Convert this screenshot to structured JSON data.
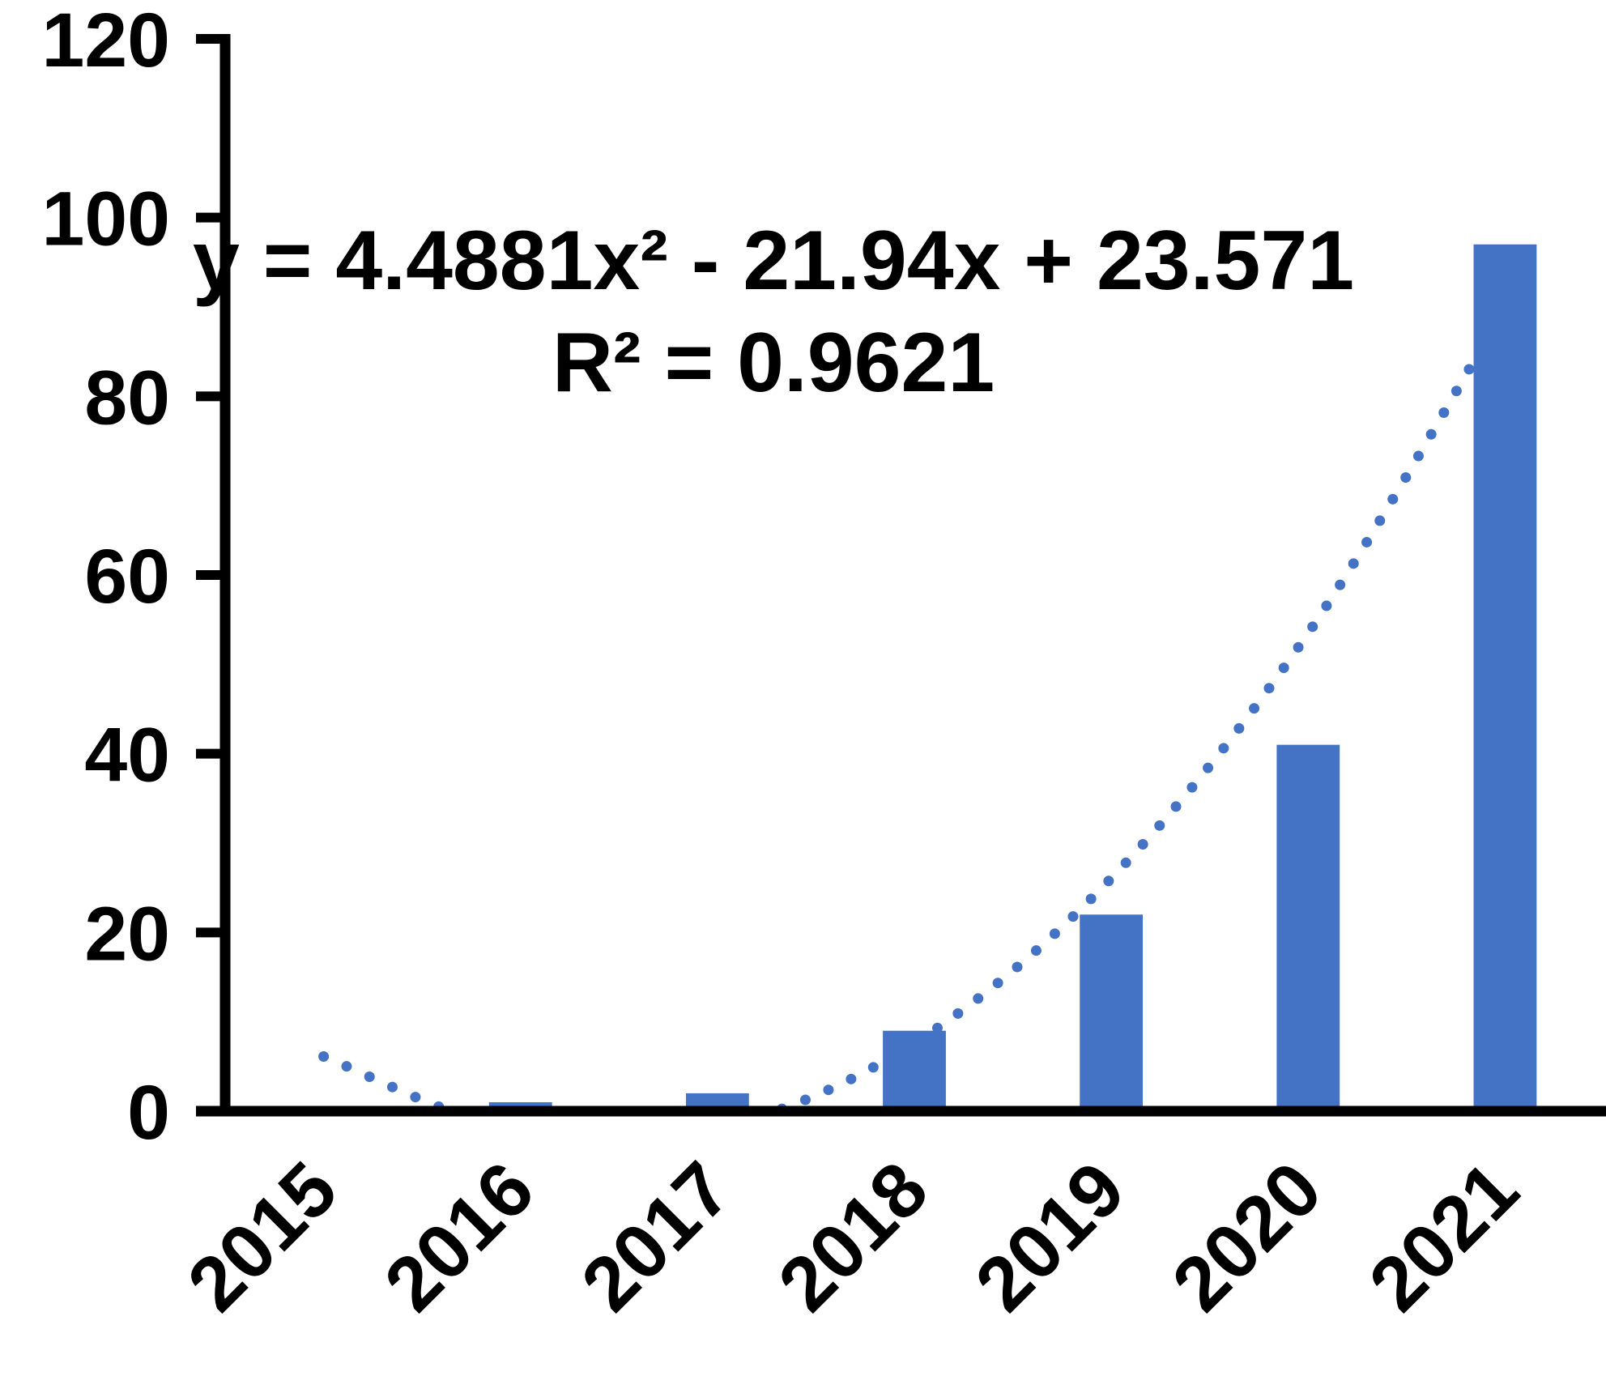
{
  "chart_data": {
    "type": "bar",
    "categories": [
      "2015",
      "2016",
      "2017",
      "2018",
      "2019",
      "2020",
      "2021"
    ],
    "values": [
      0,
      1,
      2,
      9,
      22,
      41,
      97
    ],
    "color": "#4472c4",
    "ylim": [
      0,
      120
    ],
    "yticks": [
      0,
      20,
      40,
      60,
      80,
      100,
      120
    ],
    "trendline": {
      "color": "#4472c4",
      "values": [
        6.119,
        -2.357,
        -1.856,
        7.62,
        26.07,
        53.5,
        89.9
      ]
    },
    "annotations": [
      "y = 4.4881x² - 21.94x + 23.571",
      "R² = 0.9621"
    ]
  }
}
